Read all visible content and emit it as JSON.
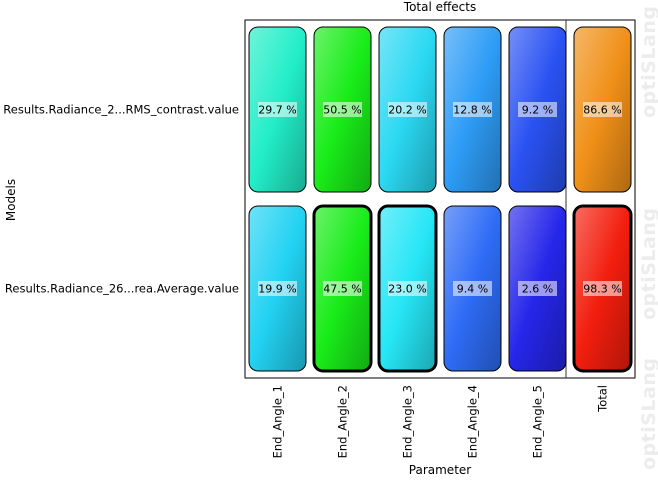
{
  "watermark": "optiSLang",
  "chart_data": {
    "type": "heatmap",
    "title": "Total effects",
    "xlabel": "Parameter",
    "ylabel": "Models",
    "columns": [
      "End_Angle_1",
      "End_Angle_2",
      "End_Angle_3",
      "End_Angle_4",
      "End_Angle_5",
      "Total"
    ],
    "rows": [
      {
        "name": "Results.Radiance_2...RMS_contrast.value",
        "values": [
          29.7,
          50.5,
          20.2,
          12.8,
          9.2,
          86.6
        ],
        "labels": [
          "29.7 %",
          "50.5 %",
          "20.2 %",
          "12.8 %",
          "9.2 %",
          "86.6 %"
        ],
        "colors": [
          "#22eec8",
          "#19ec19",
          "#2ad8f2",
          "#2e9cf6",
          "#2a52f2",
          "#f09018"
        ],
        "highlighted": [
          false,
          false,
          false,
          false,
          false,
          false
        ]
      },
      {
        "name": "Results.Radiance_26...rea.Average.value",
        "values": [
          19.9,
          47.5,
          23.0,
          9.4,
          2.6,
          98.3
        ],
        "labels": [
          "19.9 %",
          "47.5 %",
          "23.0 %",
          "9.4 %",
          "2.6 %",
          "98.3 %"
        ],
        "colors": [
          "#22d2f2",
          "#19ec19",
          "#26e6f6",
          "#2e6cf6",
          "#2626ea",
          "#f21e0e"
        ],
        "highlighted": [
          false,
          true,
          true,
          false,
          false,
          true
        ]
      }
    ]
  }
}
